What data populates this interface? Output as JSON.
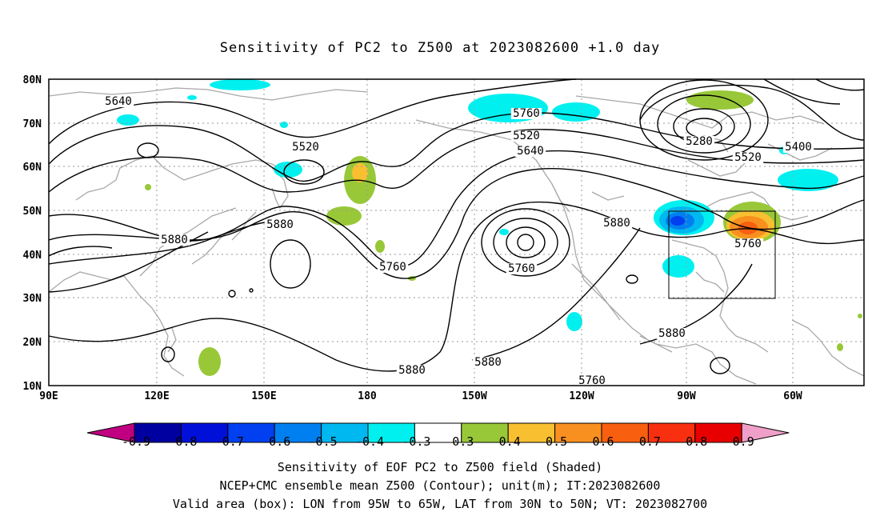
{
  "title": "Sensitivity of PC2 to Z500 at 2023082600 +1.0 day",
  "map": {
    "lon_ticks": [
      "90E",
      "120E",
      "150E",
      "180",
      "150W",
      "120W",
      "90W",
      "60W"
    ],
    "lat_ticks": [
      "80N",
      "70N",
      "60N",
      "50N",
      "40N",
      "30N",
      "20N",
      "10N"
    ],
    "box": {
      "lon_from": "95W",
      "lon_to": "65W",
      "lat_from": "30N",
      "lat_to": "50N"
    },
    "contour_labels": [
      "5640",
      "5520",
      "5760",
      "5880",
      "5880",
      "5760",
      "5520",
      "5640",
      "5760",
      "5760",
      "5880",
      "5280",
      "5400",
      "5520",
      "5760",
      "5880",
      "5880",
      "5880"
    ]
  },
  "colorbar": {
    "labels": [
      "-0.9",
      "-0.8",
      "-0.7",
      "-0.6",
      "-0.5",
      "-0.4",
      "-0.3",
      "0.3",
      "0.4",
      "0.5",
      "0.6",
      "0.7",
      "0.8",
      "0.9"
    ],
    "colors": [
      "#c00080",
      "#0000a0",
      "#0010d8",
      "#0040f0",
      "#0080f0",
      "#00b8f0",
      "#00f0f0",
      "#ffffff",
      "#98c838",
      "#f8c030",
      "#f89020",
      "#f86010",
      "#f83010",
      "#e80000",
      "#f0a0c8"
    ]
  },
  "footer": {
    "line1": "Sensitivity of EOF PC2 to Z500 field (Shaded)",
    "line2": "NCEP+CMC ensemble mean Z500 (Contour); unit(m); IT:2023082600",
    "line3": "Valid area (box): LON from 95W to 65W, LAT from 30N to 50N; VT: 2023082700"
  }
}
